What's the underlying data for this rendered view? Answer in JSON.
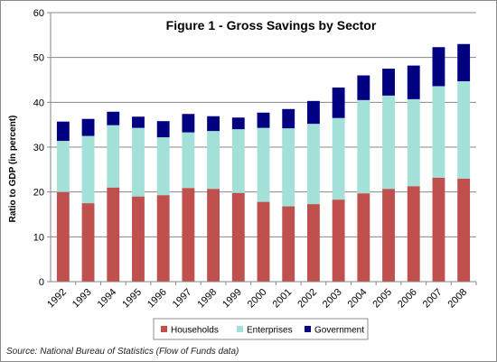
{
  "chart_data": {
    "type": "bar",
    "stacked": true,
    "title": "Figure 1 - Gross Savings by Sector",
    "xlabel": "",
    "ylabel": "Ratio to GDP (in percent)",
    "ylim": [
      0,
      60
    ],
    "yticks": [
      0,
      10,
      20,
      30,
      40,
      50,
      60
    ],
    "grid": true,
    "legend_position": "bottom",
    "categories": [
      "1992",
      "1993",
      "1994",
      "1995",
      "1996",
      "1997",
      "1998",
      "1999",
      "2000",
      "2001",
      "2002",
      "2003",
      "2004",
      "2005",
      "2006",
      "2007",
      "2008"
    ],
    "series": [
      {
        "name": "Households",
        "color": "#c0504d",
        "values": [
          20.0,
          17.5,
          21.0,
          19.0,
          19.3,
          20.9,
          20.7,
          19.8,
          17.8,
          16.8,
          17.3,
          18.3,
          19.7,
          20.7,
          21.3,
          23.2,
          23.0
        ]
      },
      {
        "name": "Enterprises",
        "color": "#a3e0d7",
        "values": [
          11.4,
          15.0,
          13.9,
          15.3,
          12.9,
          12.4,
          12.9,
          14.2,
          16.5,
          17.4,
          17.9,
          18.2,
          20.8,
          20.8,
          19.4,
          20.4,
          21.7
        ]
      },
      {
        "name": "Government",
        "color": "#000080",
        "values": [
          4.3,
          3.8,
          3.0,
          2.5,
          3.6,
          4.1,
          3.3,
          2.6,
          3.4,
          4.3,
          5.1,
          6.8,
          5.5,
          6.0,
          7.5,
          8.7,
          8.3
        ]
      }
    ]
  },
  "source_note": "Source: National Bureau of Statistics (Flow of Funds data)"
}
